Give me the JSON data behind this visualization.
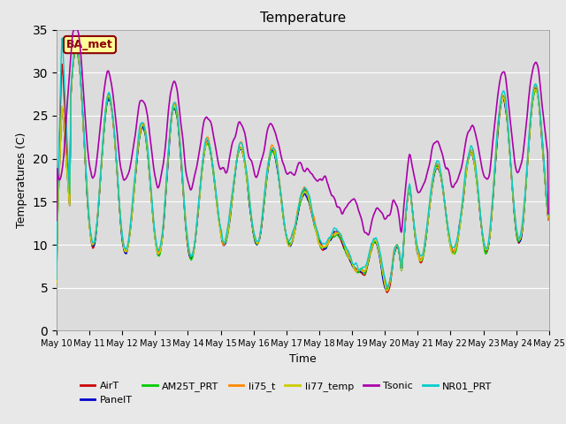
{
  "title": "Temperature",
  "xlabel": "Time",
  "ylabel": "Temperatures (C)",
  "ylim": [
    0,
    35
  ],
  "yticks": [
    0,
    5,
    10,
    15,
    20,
    25,
    30,
    35
  ],
  "plot_bg": "#dcdcdc",
  "fig_bg": "#e8e8e8",
  "annotation_text": "BA_met",
  "series": {
    "AirT": {
      "color": "#cc0000",
      "lw": 1.0
    },
    "PanelT": {
      "color": "#0000cc",
      "lw": 1.0
    },
    "AM25T_PRT": {
      "color": "#00cc00",
      "lw": 1.0
    },
    "li75_t": {
      "color": "#ff8800",
      "lw": 1.0
    },
    "li77_temp": {
      "color": "#cccc00",
      "lw": 1.0
    },
    "Tsonic": {
      "color": "#aa00aa",
      "lw": 1.2
    },
    "NR01_PRT": {
      "color": "#00cccc",
      "lw": 1.0
    }
  },
  "legend_order": [
    "AirT",
    "PanelT",
    "AM25T_PRT",
    "li75_t",
    "li77_temp",
    "Tsonic",
    "NR01_PRT"
  ]
}
